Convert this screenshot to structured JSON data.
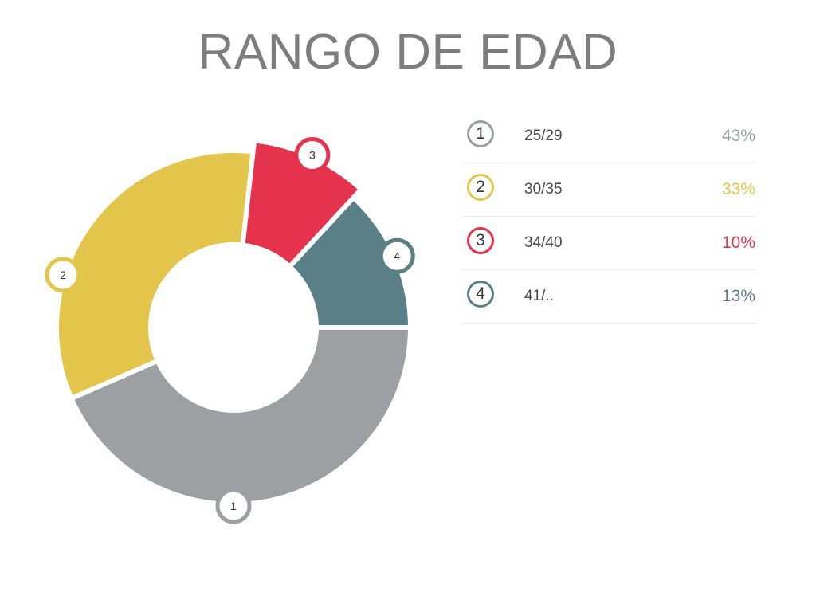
{
  "title": "RANGO DE EDAD",
  "chart_data": {
    "type": "pie",
    "variant": "donut",
    "title": "RANGO DE EDAD",
    "slices": [
      {
        "id": "1",
        "label": "25/29",
        "percent_label": "43%",
        "value": 43,
        "color": "#9ca0a3"
      },
      {
        "id": "2",
        "label": "30/35",
        "percent_label": "33%",
        "value": 33,
        "color": "#e3c54b"
      },
      {
        "id": "3",
        "label": "34/40",
        "percent_label": "10%",
        "value": 10,
        "color": "#e5324d"
      },
      {
        "id": "4",
        "label": "41/..",
        "percent_label": "13%",
        "value": 13,
        "color": "#5a7f87"
      }
    ],
    "legend_position": "right"
  }
}
